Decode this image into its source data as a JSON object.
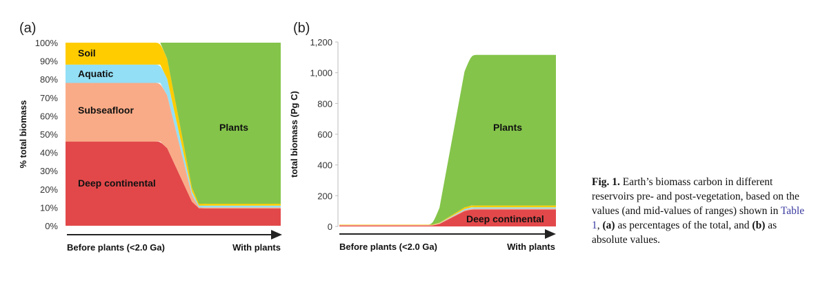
{
  "chart_data": [
    {
      "type": "area",
      "stacked": true,
      "panel_label": "(a)",
      "ylabel": "% total biomass",
      "ylim": [
        0,
        100
      ],
      "yticks": [
        "0%",
        "10%",
        "20%",
        "30%",
        "40%",
        "50%",
        "60%",
        "70%",
        "80%",
        "90%",
        "100%"
      ],
      "x_categories": [
        "Before plants (<2.0 Ga)",
        "With plants"
      ],
      "series": [
        {
          "name": "Deep continental",
          "color": "#e2484a",
          "values": [
            46,
            9.5
          ]
        },
        {
          "name": "Subseafloor",
          "color": "#f9ab87",
          "values": [
            32,
            0.5
          ]
        },
        {
          "name": "Aquatic",
          "color": "#93dff5",
          "values": [
            10,
            1
          ]
        },
        {
          "name": "Soil",
          "color": "#ffcc00",
          "values": [
            12,
            1
          ]
        },
        {
          "name": "Plants",
          "color": "#84c44a",
          "values": [
            0,
            88
          ]
        }
      ]
    },
    {
      "type": "area",
      "stacked": true,
      "panel_label": "(b)",
      "ylabel": "total biomass (Pg C)",
      "ylim": [
        0,
        1200
      ],
      "yticks": [
        "0",
        "200",
        "400",
        "600",
        "800",
        "1,000",
        "1,200"
      ],
      "x_categories": [
        "Before plants (<2.0 Ga)",
        "With plants"
      ],
      "series": [
        {
          "name": "Deep continental",
          "color": "#e2484a",
          "values": [
            5.5,
            110
          ]
        },
        {
          "name": "Subseafloor",
          "color": "#f9ab87",
          "values": [
            3.8,
            6
          ]
        },
        {
          "name": "Aquatic",
          "color": "#93dff5",
          "values": [
            1.2,
            8
          ]
        },
        {
          "name": "Soil",
          "color": "#ffcc00",
          "values": [
            1.5,
            12
          ]
        },
        {
          "name": "Plants",
          "color": "#84c44a",
          "values": [
            0,
            980
          ]
        }
      ],
      "labeled_series": [
        "Plants",
        "Deep continental"
      ]
    }
  ],
  "caption": {
    "fig_label": "Fig. 1.",
    "text_1": " Earth’s biomass carbon in different reservoirs pre- and post-vegetation, based on the values (and mid-values of ranges) shown in ",
    "link": "Table 1",
    "text_2": ", ",
    "a": "(a)",
    "text_3": " as percentages of the total, and ",
    "b": "(b)",
    "text_4": " as absolute values."
  }
}
